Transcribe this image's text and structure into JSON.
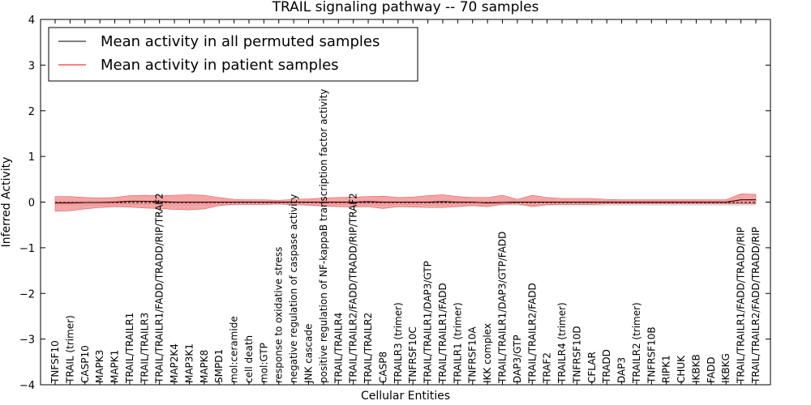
{
  "chart_data": {
    "type": "line",
    "title": "TRAIL signaling pathway -- 70 samples",
    "xlabel": "Cellular Entities",
    "ylabel": "Inferred Activity",
    "ylim": [
      -4,
      4
    ],
    "yticks": [
      -4,
      -3,
      -2,
      -1,
      0,
      1,
      2,
      3,
      4
    ],
    "ytick_labels": [
      "−4",
      "−3",
      "−2",
      "−1",
      "0",
      "1",
      "2",
      "3",
      "4"
    ],
    "legend_position": "top-left",
    "categories": [
      "TNFSF10",
      "TRAIL (trimer)",
      "CASP10",
      "MAPK3",
      "MAPK1",
      "TRAIL/TRAILR1",
      "TRAIL/TRAILR3",
      "TRAIL/TRAILR1/FADD/TRADD/RIP/TRAF2",
      "MAP2K4",
      "MAP3K1",
      "MAPK8",
      "SMPD1",
      "mol:ceramide",
      "cell death",
      "mol:GTP",
      "response to oxidative stress",
      "negative regulation of caspase activity",
      "JNK cascade",
      "positive regulation of NF-kappaB transcription factor activity",
      "TRAIL/TRAILR4",
      "TRAIL/TRAILR2/FADD/TRADD/RIP/TRAF2",
      "TRAIL/TRAILR2",
      "CASP8",
      "TRAILR3 (trimer)",
      "TNFRSF10C",
      "TRAIL/TRAILR1/DAP3/GTP",
      "TRAIL/TRAILR1/FADD",
      "TRAILR1 (trimer)",
      "TNFRSF10A",
      "IKK complex",
      "TRAIL/TRAILR1/DAP3/GTP/FADD",
      "DAP3/GTP",
      "TRAIL/TRAILR2/FADD",
      "TRAF2",
      "TRAILR4 (trimer)",
      "TNFRSF10D",
      "CFLAR",
      "TRADD",
      "DAP3",
      "TRAILR2 (trimer)",
      "TNFRSF10B",
      "RIPK1",
      "CHUK",
      "IKBKB",
      "FADD",
      "IKBKG",
      "TRAIL/TRAILR1/FADD/TRADD/RIP",
      "TRAIL/TRAILR2/FADD/TRADD/RIP"
    ],
    "series": [
      {
        "name": "Mean activity in all permuted samples",
        "color": "#000000",
        "style": "dashed",
        "values": [
          -0.01,
          -0.01,
          -0.01,
          -0.01,
          -0.01,
          -0.01,
          -0.01,
          -0.01,
          -0.01,
          -0.01,
          -0.01,
          -0.01,
          -0.01,
          -0.01,
          -0.01,
          -0.01,
          -0.01,
          -0.01,
          -0.01,
          -0.01,
          -0.01,
          -0.01,
          -0.01,
          -0.01,
          -0.01,
          -0.01,
          -0.01,
          -0.01,
          -0.01,
          -0.01,
          -0.01,
          -0.01,
          -0.01,
          -0.01,
          -0.01,
          -0.01,
          -0.01,
          -0.01,
          -0.01,
          -0.01,
          -0.01,
          -0.01,
          -0.01,
          -0.01,
          -0.01,
          -0.01,
          -0.01,
          -0.01
        ],
        "band_upper": [
          0.03,
          0.03,
          0.03,
          0.03,
          0.03,
          0.03,
          0.03,
          0.03,
          0.03,
          0.03,
          0.03,
          0.03,
          0.03,
          0.03,
          0.03,
          0.03,
          0.03,
          0.03,
          0.03,
          0.03,
          0.03,
          0.03,
          0.03,
          0.03,
          0.03,
          0.03,
          0.03,
          0.03,
          0.03,
          0.03,
          0.03,
          0.03,
          0.03,
          0.03,
          0.03,
          0.03,
          0.04,
          0.04,
          0.04,
          0.04,
          0.04,
          0.04,
          0.04,
          0.04,
          0.04,
          0.04,
          0.04,
          0.04
        ],
        "band_lower": [
          -0.07,
          -0.07,
          -0.07,
          -0.07,
          -0.07,
          -0.07,
          -0.07,
          -0.07,
          -0.07,
          -0.07,
          -0.07,
          -0.07,
          -0.07,
          -0.07,
          -0.07,
          -0.07,
          -0.07,
          -0.07,
          -0.07,
          -0.07,
          -0.07,
          -0.07,
          -0.07,
          -0.07,
          -0.07,
          -0.07,
          -0.07,
          -0.07,
          -0.07,
          -0.07,
          -0.07,
          -0.08,
          -0.08,
          -0.08,
          -0.08,
          -0.08,
          -0.08,
          -0.08,
          -0.08,
          -0.08,
          -0.08,
          -0.08,
          -0.08,
          -0.08,
          -0.08,
          -0.08,
          -0.08,
          -0.08
        ]
      },
      {
        "name": "Mean activity in patient samples",
        "color": "#ff0000",
        "band_color": "#f08080",
        "values": [
          -0.02,
          -0.02,
          -0.01,
          -0.01,
          0.0,
          0.02,
          0.02,
          0.01,
          0.0,
          0.0,
          0.0,
          0.0,
          0.0,
          0.0,
          0.0,
          0.0,
          0.0,
          0.0,
          0.0,
          0.0,
          0.0,
          0.01,
          0.0,
          0.0,
          0.0,
          0.0,
          0.01,
          0.0,
          0.0,
          -0.02,
          -0.01,
          0.0,
          0.0,
          0.0,
          0.0,
          0.0,
          0.0,
          0.0,
          0.0,
          0.0,
          0.0,
          0.0,
          0.0,
          0.0,
          0.0,
          0.0,
          0.05,
          0.05
        ],
        "band_upper": [
          0.12,
          0.12,
          0.1,
          0.09,
          0.1,
          0.14,
          0.15,
          0.14,
          0.15,
          0.16,
          0.15,
          0.1,
          0.06,
          0.05,
          0.05,
          0.04,
          0.06,
          0.07,
          0.09,
          0.1,
          0.11,
          0.12,
          0.13,
          0.1,
          0.11,
          0.14,
          0.16,
          0.12,
          0.1,
          0.1,
          0.15,
          0.06,
          0.15,
          0.1,
          0.08,
          0.08,
          0.08,
          0.06,
          0.05,
          0.05,
          0.05,
          0.05,
          0.05,
          0.05,
          0.05,
          0.05,
          0.18,
          0.17
        ],
        "band_lower": [
          -0.2,
          -0.19,
          -0.15,
          -0.12,
          -0.1,
          -0.11,
          -0.13,
          -0.14,
          -0.16,
          -0.17,
          -0.15,
          -0.08,
          -0.05,
          -0.05,
          -0.05,
          -0.04,
          -0.06,
          -0.07,
          -0.09,
          -0.1,
          -0.11,
          -0.1,
          -0.14,
          -0.1,
          -0.11,
          -0.12,
          -0.12,
          -0.1,
          -0.08,
          -0.1,
          -0.05,
          -0.04,
          -0.1,
          -0.06,
          -0.05,
          -0.05,
          -0.05,
          -0.04,
          -0.04,
          -0.04,
          -0.04,
          -0.04,
          -0.04,
          -0.04,
          -0.04,
          -0.04,
          -0.04,
          -0.04
        ]
      }
    ]
  }
}
